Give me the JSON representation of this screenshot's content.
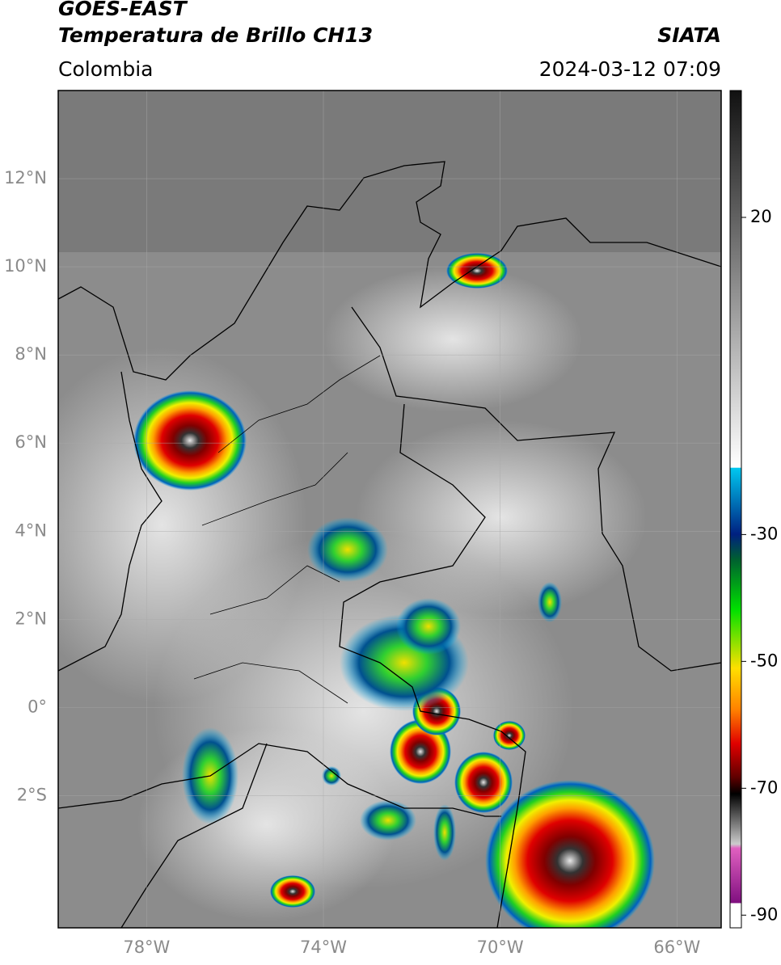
{
  "header": {
    "title": "GOES-EAST",
    "subtitle": "Temperatura de Brillo CH13",
    "source": "SIATA",
    "region": "Colombia",
    "datetime": "2024-03-12 07:09"
  },
  "map": {
    "latlim": [
      -5,
      14
    ],
    "lonlim": [
      -80,
      -65
    ],
    "lat_ticks": [
      {
        "value": 12,
        "label": "12°N"
      },
      {
        "value": 10,
        "label": "10°N"
      },
      {
        "value": 8,
        "label": "8°N"
      },
      {
        "value": 6,
        "label": "6°N"
      },
      {
        "value": 4,
        "label": "4°N"
      },
      {
        "value": 2,
        "label": "2°N"
      },
      {
        "value": 0,
        "label": "0°"
      },
      {
        "value": -2,
        "label": "2°S"
      }
    ],
    "lon_ticks": [
      {
        "value": -78,
        "label": "78°W"
      },
      {
        "value": -74,
        "label": "74°W"
      },
      {
        "value": -70,
        "label": "70°W"
      },
      {
        "value": -66,
        "label": "66°W"
      }
    ]
  },
  "colorbar": {
    "lim": [
      -92,
      40
    ],
    "ticks": [
      20,
      -30,
      -50,
      -70,
      -90
    ]
  }
}
